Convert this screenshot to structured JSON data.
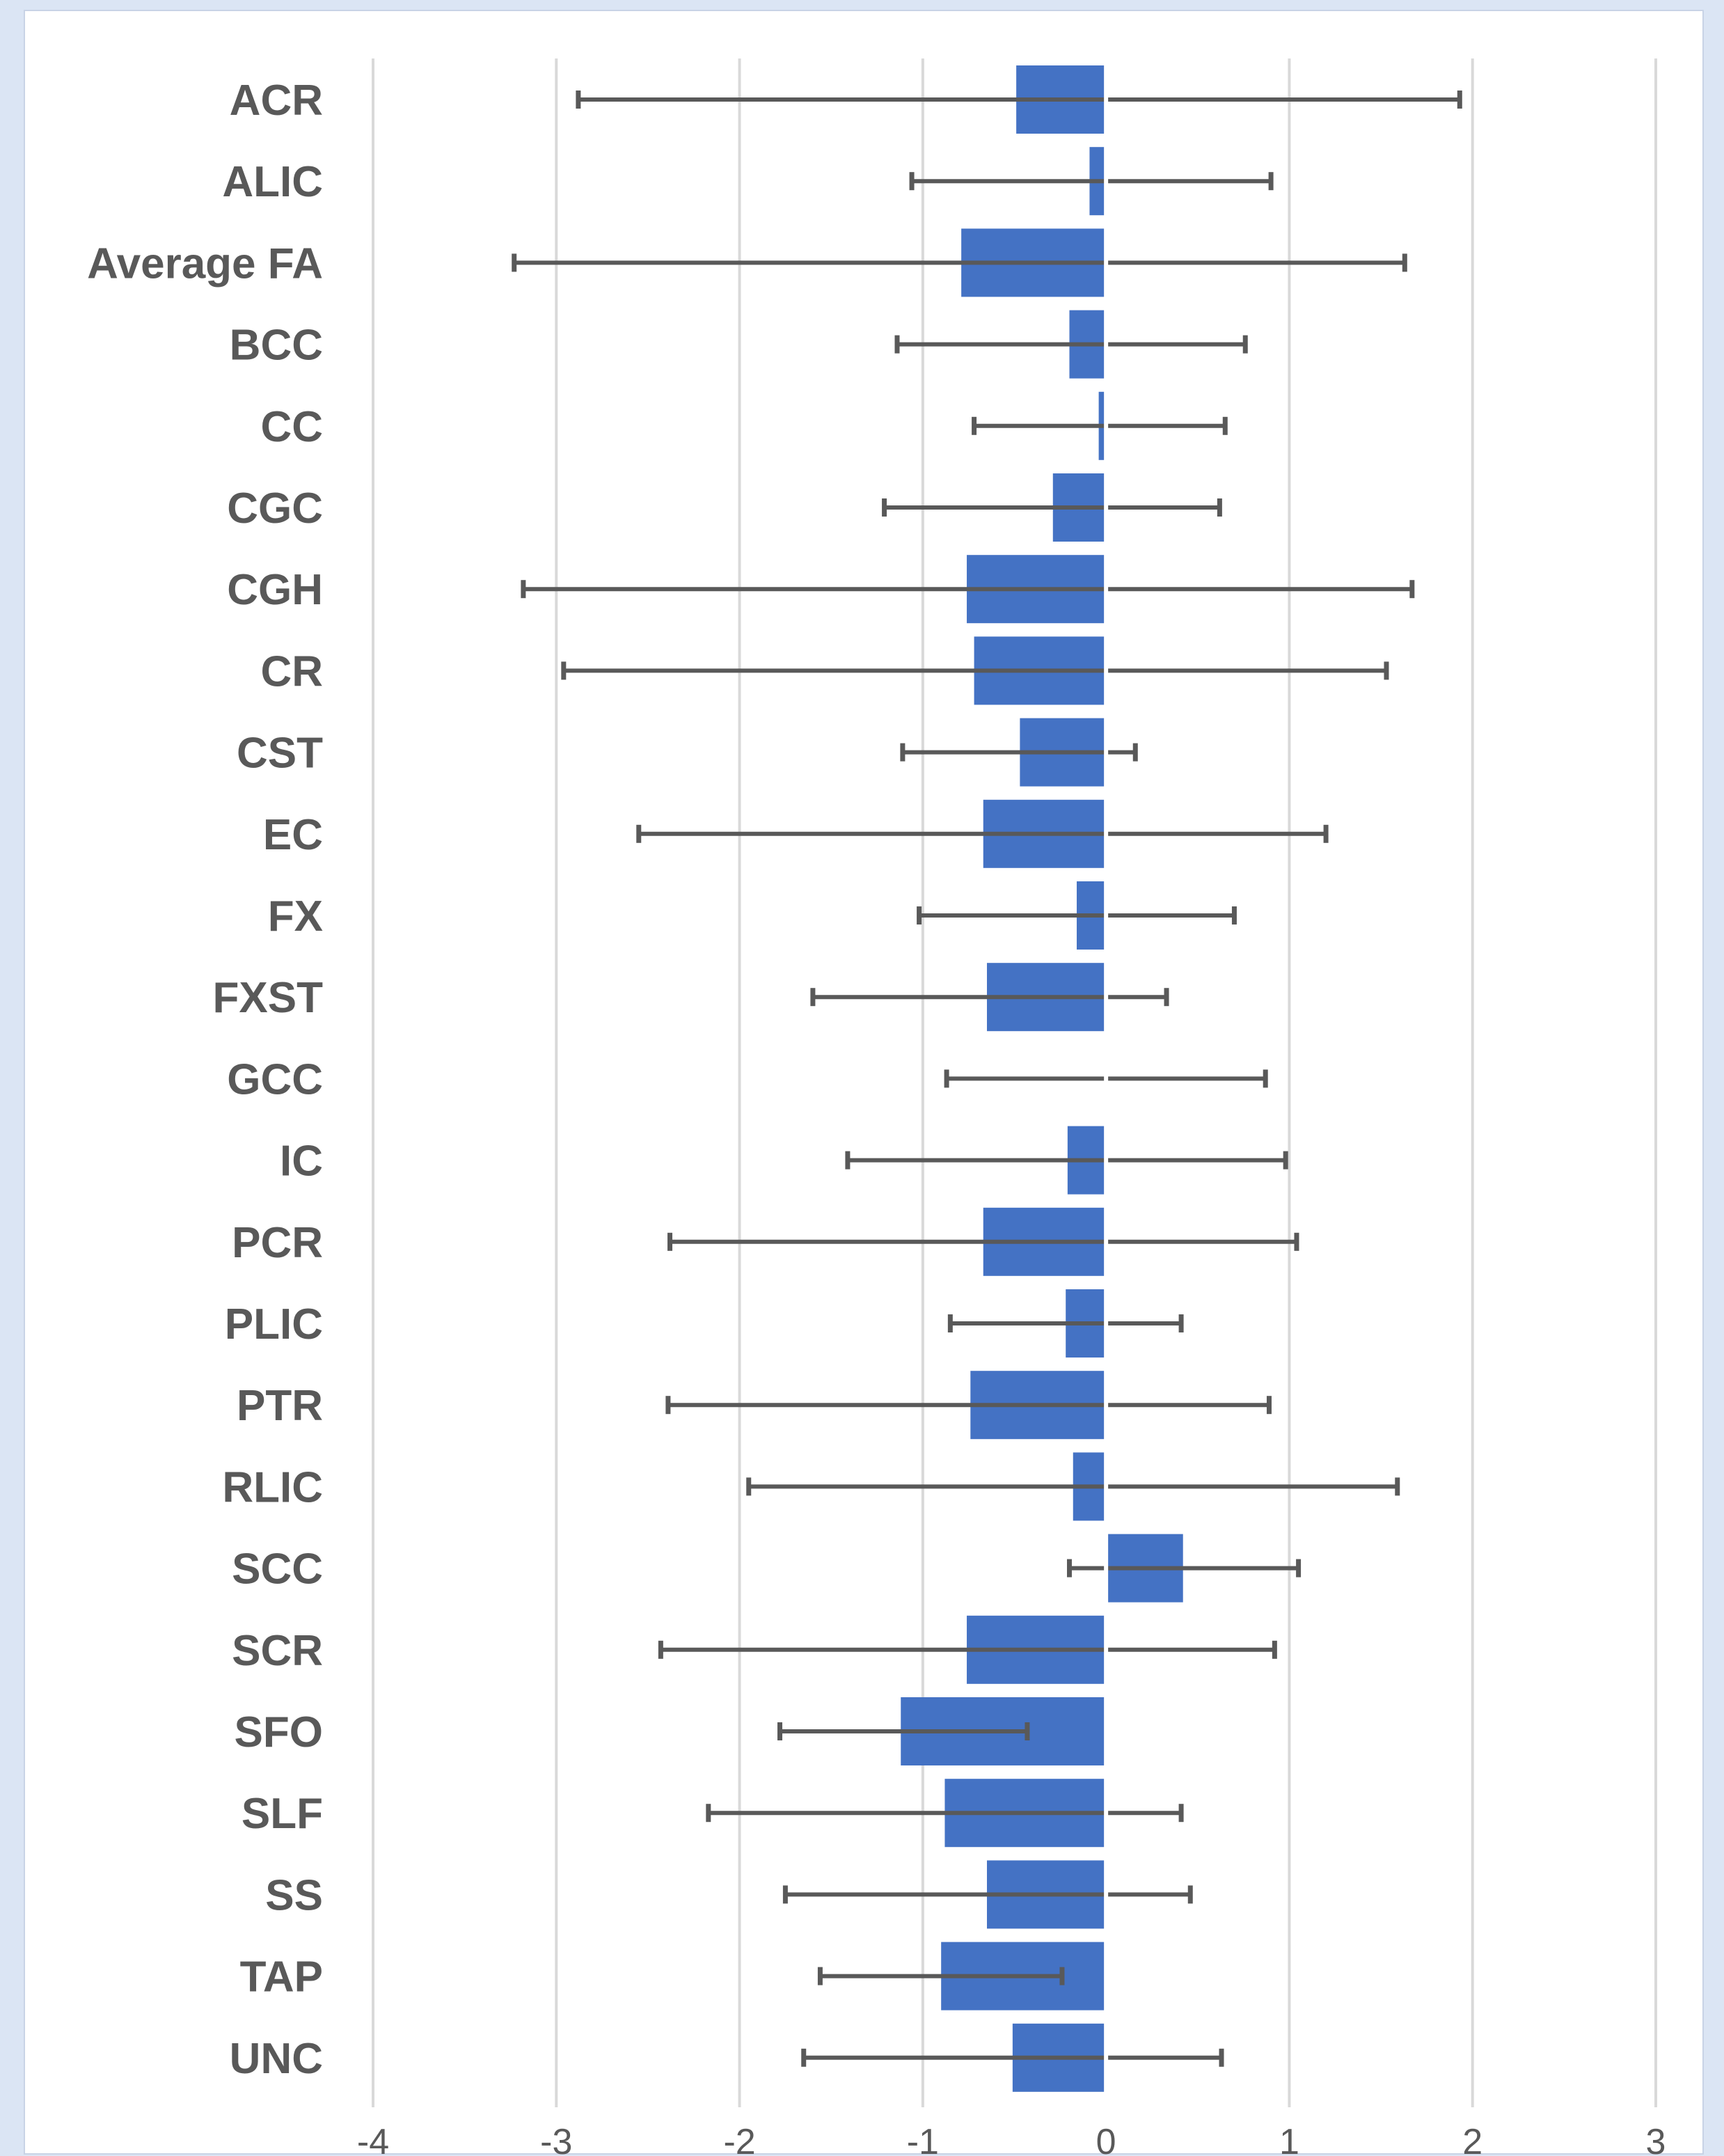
{
  "chart_data": {
    "type": "bar",
    "orientation": "horizontal",
    "categories": [
      "ACR",
      "ALIC",
      "Average FA",
      "BCC",
      "CC",
      "CGC",
      "CGH",
      "CR",
      "CST",
      "EC",
      "FX",
      "FXST",
      "GCC",
      "IC",
      "PCR",
      "PLIC",
      "PTR",
      "RLIC",
      "SCC",
      "SCR",
      "SFO",
      "SLF",
      "SS",
      "TAP",
      "UNC"
    ],
    "values": [
      -0.49,
      -0.09,
      -0.79,
      -0.2,
      -0.04,
      -0.29,
      -0.76,
      -0.72,
      -0.47,
      -0.67,
      -0.16,
      -0.65,
      0.0,
      -0.21,
      -0.67,
      -0.22,
      -0.74,
      -0.18,
      0.42,
      -0.76,
      -1.12,
      -0.88,
      -0.65,
      -0.9,
      -0.51
    ],
    "error_low": [
      -2.88,
      -1.06,
      -3.23,
      -1.14,
      -0.72,
      -1.21,
      -3.18,
      -2.96,
      -1.11,
      -2.55,
      -1.02,
      -1.6,
      -0.87,
      -1.41,
      -2.38,
      -0.85,
      -2.39,
      -1.95,
      -0.2,
      -2.43,
      -1.78,
      -2.17,
      -1.75,
      -1.56,
      -1.65
    ],
    "error_high": [
      1.93,
      0.9,
      1.63,
      0.76,
      0.65,
      0.62,
      1.67,
      1.53,
      0.16,
      1.2,
      0.7,
      0.33,
      0.87,
      0.98,
      1.04,
      0.41,
      0.89,
      1.59,
      1.05,
      0.92,
      -0.43,
      0.41,
      0.46,
      -0.24,
      0.63
    ],
    "xlim": [
      -4,
      3
    ],
    "xticks": [
      "-4",
      "-3",
      "-2",
      "-1",
      "0",
      "1",
      "2",
      "3"
    ],
    "grid": "vertical",
    "bar_color": "#4472c4",
    "error_bar_color": "#595959",
    "gridline_color": "#d9d9d9",
    "title": "",
    "xlabel": "",
    "ylabel": ""
  }
}
